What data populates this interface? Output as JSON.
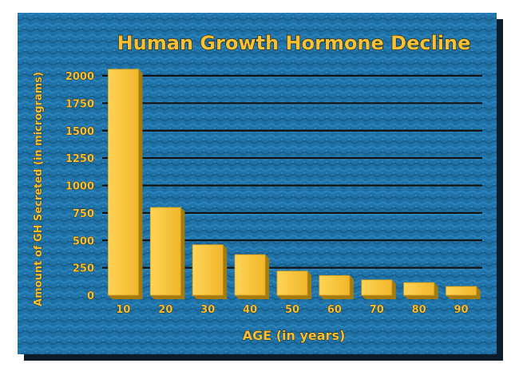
{
  "chart_data": {
    "type": "bar",
    "title": "Human Growth Hormone Decline",
    "xlabel": "AGE (in years)",
    "ylabel": "Amount of GH Secreted (in micrograms)",
    "categories": [
      "10",
      "20",
      "30",
      "40",
      "50",
      "60",
      "70",
      "80",
      "90"
    ],
    "values": [
      2060,
      800,
      460,
      370,
      220,
      180,
      140,
      115,
      80
    ],
    "ylim": [
      0,
      2000
    ],
    "yticks": [
      0,
      250,
      500,
      750,
      1000,
      1250,
      1500,
      1750,
      2000
    ],
    "grid": true,
    "legend": "none",
    "colors": {
      "background": "#1f73a8",
      "bar": "#f6c135",
      "bar_shadow": "#a37b10",
      "text": "#f6c135",
      "text_outline": "#2a1a00",
      "gridline": "#111111",
      "frame": "#0c1c2a"
    }
  }
}
